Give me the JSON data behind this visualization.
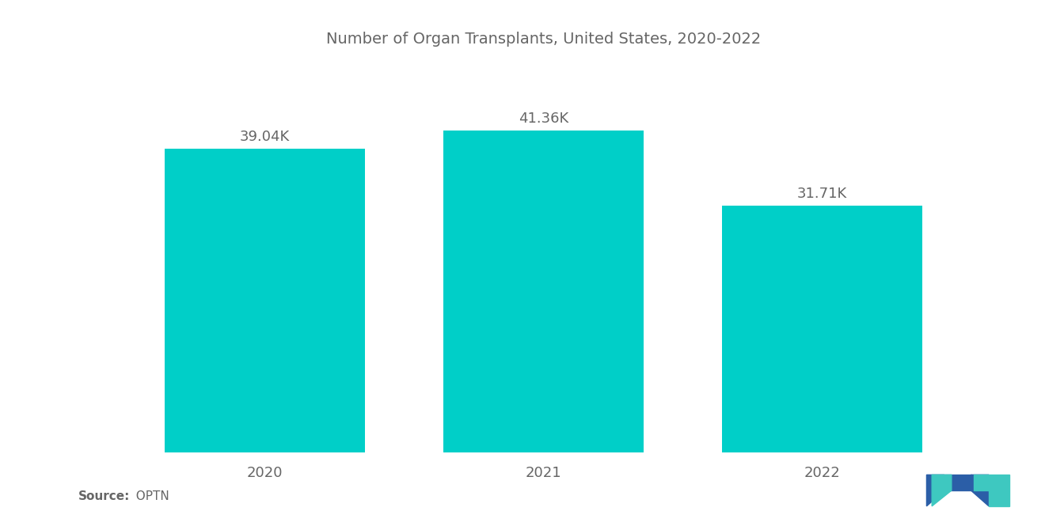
{
  "title": "Number of Organ Transplants, United States, 2020-2022",
  "categories": [
    "2020",
    "2021",
    "2022"
  ],
  "values": [
    39.04,
    41.36,
    31.71
  ],
  "labels": [
    "39.04K",
    "41.36K",
    "31.71K"
  ],
  "bar_color": "#00CFC8",
  "background_color": "#ffffff",
  "title_color": "#666666",
  "label_color": "#666666",
  "tick_color": "#666666",
  "source_bold": "Source:",
  "source_normal": "  OPTN",
  "title_fontsize": 14,
  "label_fontsize": 13,
  "tick_fontsize": 13,
  "source_fontsize": 11,
  "ylim": [
    0,
    50
  ],
  "bar_width": 0.72,
  "logo_blue": "#2B5EA7",
  "logo_teal": "#3EC8C0"
}
